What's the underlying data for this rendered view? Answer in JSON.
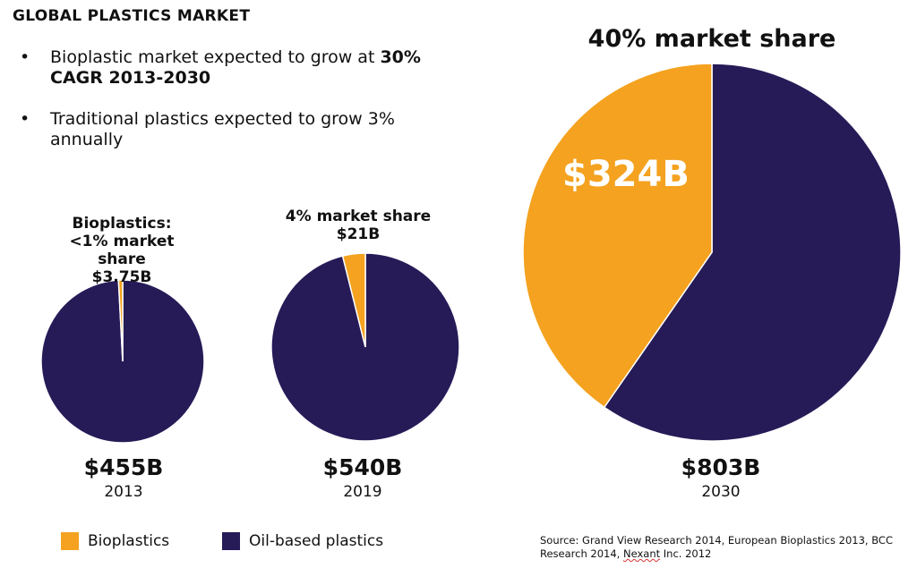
{
  "title": "GLOBAL PLASTICS MARKET",
  "bullets": [
    {
      "dot": "•",
      "text_plain": "Bioplastic market expected to grow at ",
      "text_bold": "30% CAGR 2013-2030"
    },
    {
      "dot": "•",
      "text_plain": "Traditional plastics expected to grow 3% annually",
      "text_bold": ""
    }
  ],
  "colors": {
    "bioplastics": "#F4A21F",
    "oil_based": "#261B57"
  },
  "chart_data": {
    "type": "pie",
    "title": "",
    "legend": [
      "Bioplastics",
      "Oil-based plastics"
    ],
    "legend_position": "bottom-left",
    "charts": [
      {
        "year": "2013",
        "total_label": "$455B",
        "total": 455,
        "bioplastics": 3.75,
        "annotation": [
          "Bioplastics:",
          "<1% market share",
          "$3.75B"
        ]
      },
      {
        "year": "2019",
        "total_label": "$540B",
        "total": 540,
        "bioplastics": 21,
        "annotation": [
          "4% market share",
          "$21B"
        ]
      },
      {
        "year": "2030",
        "total_label": "$803B",
        "total": 803,
        "bioplastics": 324,
        "annotation": [
          "40% market share"
        ],
        "slice_label": "$324B"
      }
    ]
  },
  "legend": {
    "bioplastics": "Bioplastics",
    "oil": "Oil-based plastics"
  },
  "source": {
    "prefix": "Source: Grand View Research 2014, European Bioplastics 2013, BCC Research 2014, ",
    "underlined": "Nexant",
    "suffix": " Inc. 2012"
  }
}
